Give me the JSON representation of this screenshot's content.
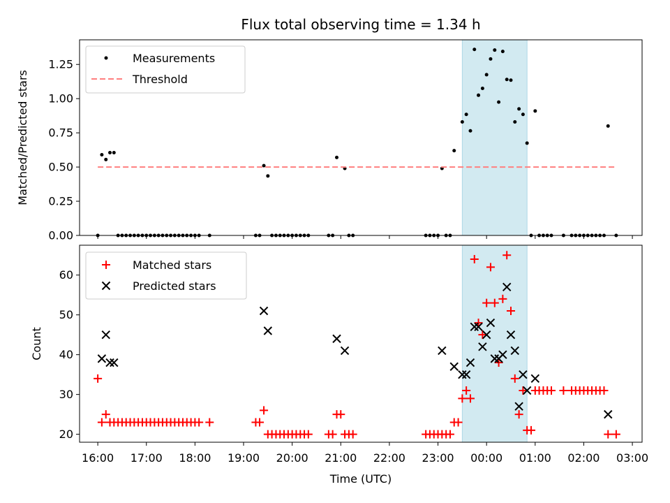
{
  "chart_data": [
    {
      "type": "scatter",
      "title": "Flux total observing time = 1.34 h",
      "xlabel": "",
      "ylabel": "Matched/Predicted stars",
      "xlim": [
        15.625,
        27.2
      ],
      "ylim": [
        0,
        1.43
      ],
      "yticks": [
        0.0,
        0.25,
        0.5,
        0.75,
        1.0,
        1.25
      ],
      "ytick_labels": [
        "0.00",
        "0.25",
        "0.50",
        "0.75",
        "1.00",
        "1.25"
      ],
      "shaded_region": {
        "x0": 23.5,
        "x1": 24.833,
        "color": "#add8e6"
      },
      "legend": {
        "location": "upper-left",
        "entries": [
          "Measurements",
          "Threshold"
        ]
      },
      "series": [
        {
          "name": "Measurements",
          "color": "#000000",
          "marker": "dot",
          "points": [
            [
              16.0,
              0
            ],
            [
              16.083,
              0.59
            ],
            [
              16.167,
              0.555
            ],
            [
              16.25,
              0.605
            ],
            [
              16.333,
              0.605
            ],
            [
              16.417,
              0
            ],
            [
              16.5,
              0
            ],
            [
              16.583,
              0
            ],
            [
              16.667,
              0
            ],
            [
              16.75,
              0
            ],
            [
              16.833,
              0
            ],
            [
              16.917,
              0
            ],
            [
              17.0,
              0
            ],
            [
              17.083,
              0
            ],
            [
              17.167,
              0
            ],
            [
              17.25,
              0
            ],
            [
              17.333,
              0
            ],
            [
              17.417,
              0
            ],
            [
              17.5,
              0
            ],
            [
              17.583,
              0
            ],
            [
              17.667,
              0
            ],
            [
              17.75,
              0
            ],
            [
              17.833,
              0
            ],
            [
              17.917,
              0
            ],
            [
              18.0,
              0
            ],
            [
              18.083,
              0
            ],
            [
              18.3,
              0
            ],
            [
              19.25,
              0
            ],
            [
              19.33,
              0
            ],
            [
              19.417,
              0.51
            ],
            [
              19.5,
              0.435
            ],
            [
              19.583,
              0
            ],
            [
              19.667,
              0
            ],
            [
              19.75,
              0
            ],
            [
              19.833,
              0
            ],
            [
              19.917,
              0
            ],
            [
              20.0,
              0
            ],
            [
              20.083,
              0
            ],
            [
              20.167,
              0
            ],
            [
              20.25,
              0
            ],
            [
              20.333,
              0
            ],
            [
              20.75,
              0
            ],
            [
              20.833,
              0
            ],
            [
              20.917,
              0.57
            ],
            [
              21.083,
              0.49
            ],
            [
              21.167,
              0
            ],
            [
              21.25,
              0
            ],
            [
              22.75,
              0
            ],
            [
              22.833,
              0
            ],
            [
              22.917,
              0
            ],
            [
              23.0,
              0
            ],
            [
              23.083,
              0.49
            ],
            [
              23.167,
              0
            ],
            [
              23.25,
              0
            ],
            [
              23.333,
              0.62
            ],
            [
              23.5,
              0.83
            ],
            [
              23.583,
              0.885
            ],
            [
              23.667,
              0.765
            ],
            [
              23.75,
              1.36
            ],
            [
              23.833,
              1.025
            ],
            [
              23.917,
              1.075
            ],
            [
              24.0,
              1.175
            ],
            [
              24.083,
              1.29
            ],
            [
              24.167,
              1.355
            ],
            [
              24.25,
              0.975
            ],
            [
              24.333,
              1.345
            ],
            [
              24.417,
              1.14
            ],
            [
              24.5,
              1.135
            ],
            [
              24.583,
              0.83
            ],
            [
              24.667,
              0.925
            ],
            [
              24.75,
              0.885
            ],
            [
              24.833,
              0.675
            ],
            [
              24.917,
              0
            ],
            [
              25.0,
              0.91
            ],
            [
              25.083,
              0
            ],
            [
              25.167,
              0
            ],
            [
              25.25,
              0
            ],
            [
              25.333,
              0
            ],
            [
              25.583,
              0
            ],
            [
              25.75,
              0
            ],
            [
              25.833,
              0
            ],
            [
              25.917,
              0
            ],
            [
              26.0,
              0
            ],
            [
              26.083,
              0
            ],
            [
              26.167,
              0
            ],
            [
              26.25,
              0
            ],
            [
              26.333,
              0
            ],
            [
              26.417,
              0
            ],
            [
              26.5,
              0.8
            ],
            [
              26.667,
              0
            ]
          ]
        },
        {
          "name": "Threshold",
          "color": "#ff7f7f",
          "style": "dashed",
          "points": [
            [
              16.0,
              0.5
            ],
            [
              26.667,
              0.5
            ]
          ]
        }
      ]
    },
    {
      "type": "scatter",
      "title": "",
      "xlabel": "Time (UTC)",
      "ylabel": "Count",
      "xlim": [
        15.625,
        27.2
      ],
      "ylim": [
        18,
        67.5
      ],
      "yticks": [
        20,
        30,
        40,
        50,
        60
      ],
      "ytick_labels": [
        "20",
        "30",
        "40",
        "50",
        "60"
      ],
      "xticks": [
        16,
        17,
        18,
        19,
        20,
        21,
        22,
        23,
        24,
        25,
        26,
        27
      ],
      "xtick_labels": [
        "16:00",
        "17:00",
        "18:00",
        "19:00",
        "20:00",
        "21:00",
        "22:00",
        "23:00",
        "00:00",
        "01:00",
        "02:00",
        "03:00"
      ],
      "shaded_region": {
        "x0": 23.5,
        "x1": 24.833,
        "color": "#add8e6"
      },
      "legend": {
        "location": "upper-left",
        "entries": [
          "Matched stars",
          "Predicted stars"
        ]
      },
      "series": [
        {
          "name": "Matched stars",
          "color": "#ff0000",
          "marker": "plus",
          "points": [
            [
              16.0,
              34
            ],
            [
              16.083,
              23
            ],
            [
              16.167,
              25
            ],
            [
              16.25,
              23
            ],
            [
              16.333,
              23
            ],
            [
              16.417,
              23
            ],
            [
              16.5,
              23
            ],
            [
              16.583,
              23
            ],
            [
              16.667,
              23
            ],
            [
              16.75,
              23
            ],
            [
              16.833,
              23
            ],
            [
              16.917,
              23
            ],
            [
              17.0,
              23
            ],
            [
              17.083,
              23
            ],
            [
              17.167,
              23
            ],
            [
              17.25,
              23
            ],
            [
              17.333,
              23
            ],
            [
              17.417,
              23
            ],
            [
              17.5,
              23
            ],
            [
              17.583,
              23
            ],
            [
              17.667,
              23
            ],
            [
              17.75,
              23
            ],
            [
              17.833,
              23
            ],
            [
              17.917,
              23
            ],
            [
              18.0,
              23
            ],
            [
              18.083,
              23
            ],
            [
              18.3,
              23
            ],
            [
              19.25,
              23
            ],
            [
              19.33,
              23
            ],
            [
              19.417,
              26
            ],
            [
              19.5,
              20
            ],
            [
              19.583,
              20
            ],
            [
              19.667,
              20
            ],
            [
              19.75,
              20
            ],
            [
              19.833,
              20
            ],
            [
              19.917,
              20
            ],
            [
              20.0,
              20
            ],
            [
              20.083,
              20
            ],
            [
              20.167,
              20
            ],
            [
              20.25,
              20
            ],
            [
              20.333,
              20
            ],
            [
              20.75,
              20
            ],
            [
              20.833,
              20
            ],
            [
              20.917,
              25
            ],
            [
              21.0,
              25
            ],
            [
              21.083,
              20
            ],
            [
              21.167,
              20
            ],
            [
              21.25,
              20
            ],
            [
              22.75,
              20
            ],
            [
              22.833,
              20
            ],
            [
              22.917,
              20
            ],
            [
              23.0,
              20
            ],
            [
              23.083,
              20
            ],
            [
              23.167,
              20
            ],
            [
              23.25,
              20
            ],
            [
              23.333,
              23
            ],
            [
              23.417,
              23
            ],
            [
              23.5,
              29
            ],
            [
              23.583,
              31
            ],
            [
              23.667,
              29
            ],
            [
              23.75,
              64
            ],
            [
              23.833,
              48
            ],
            [
              23.917,
              45
            ],
            [
              24.0,
              53
            ],
            [
              24.083,
              62
            ],
            [
              24.167,
              53
            ],
            [
              24.25,
              38
            ],
            [
              24.333,
              54
            ],
            [
              24.417,
              65
            ],
            [
              24.5,
              51
            ],
            [
              24.583,
              34
            ],
            [
              24.667,
              25
            ],
            [
              24.75,
              31
            ],
            [
              24.833,
              21
            ],
            [
              24.917,
              21
            ],
            [
              25.0,
              31
            ],
            [
              25.083,
              31
            ],
            [
              25.167,
              31
            ],
            [
              25.25,
              31
            ],
            [
              25.333,
              31
            ],
            [
              25.583,
              31
            ],
            [
              25.75,
              31
            ],
            [
              25.833,
              31
            ],
            [
              25.917,
              31
            ],
            [
              26.0,
              31
            ],
            [
              26.083,
              31
            ],
            [
              26.167,
              31
            ],
            [
              26.25,
              31
            ],
            [
              26.333,
              31
            ],
            [
              26.417,
              31
            ],
            [
              26.5,
              20
            ],
            [
              26.667,
              20
            ]
          ]
        },
        {
          "name": "Predicted stars",
          "color": "#000000",
          "marker": "x",
          "points": [
            [
              16.083,
              39
            ],
            [
              16.167,
              45
            ],
            [
              16.25,
              38
            ],
            [
              16.333,
              38
            ],
            [
              19.417,
              51
            ],
            [
              19.5,
              46
            ],
            [
              20.917,
              44
            ],
            [
              21.083,
              41
            ],
            [
              23.083,
              41
            ],
            [
              23.333,
              37
            ],
            [
              23.5,
              35
            ],
            [
              23.583,
              35
            ],
            [
              23.667,
              38
            ],
            [
              23.75,
              47
            ],
            [
              23.833,
              47
            ],
            [
              23.917,
              42
            ],
            [
              24.0,
              45
            ],
            [
              24.083,
              48
            ],
            [
              24.167,
              39
            ],
            [
              24.25,
              39
            ],
            [
              24.333,
              40
            ],
            [
              24.417,
              57
            ],
            [
              24.5,
              45
            ],
            [
              24.583,
              41
            ],
            [
              24.667,
              27
            ],
            [
              24.75,
              35
            ],
            [
              24.833,
              31
            ],
            [
              25.0,
              34
            ],
            [
              26.5,
              25
            ]
          ]
        }
      ]
    }
  ]
}
